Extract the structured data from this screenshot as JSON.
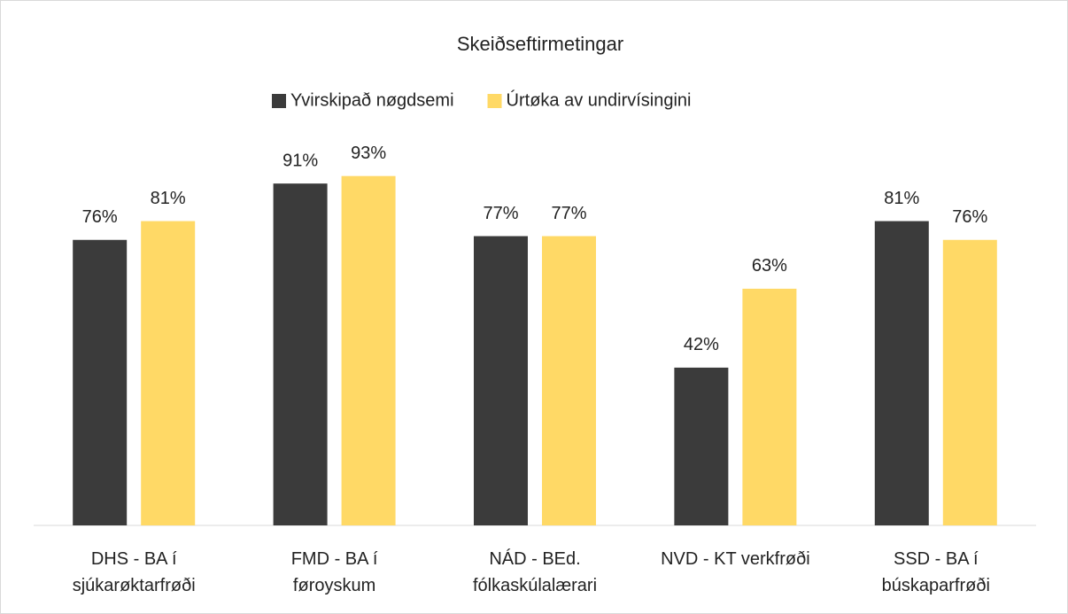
{
  "chart_data": {
    "type": "bar",
    "title": "Skeiðseftirmetingar",
    "categories": [
      "DHS - BA í\nsjúkarøktarfrøði",
      "FMD - BA í\nføroyskum",
      "NÁD - BEd.\nfólkaskúlalærari",
      "NVD - KT verkfrøði",
      "SSD - BA í\nbúskaparfrøði"
    ],
    "series": [
      {
        "name": "Yvirskipað nøgdsemi",
        "color": "#3b3b3b",
        "values": [
          76,
          91,
          77,
          42,
          81
        ],
        "value_labels": [
          "76%",
          "91%",
          "77%",
          "42%",
          "81%"
        ]
      },
      {
        "name": "Úrtøka av undirvísingini",
        "color": "#ffd966",
        "values": [
          81,
          93,
          77,
          63,
          76
        ],
        "value_labels": [
          "81%",
          "93%",
          "77%",
          "63%",
          "76%"
        ]
      }
    ],
    "legend": "top"
  }
}
